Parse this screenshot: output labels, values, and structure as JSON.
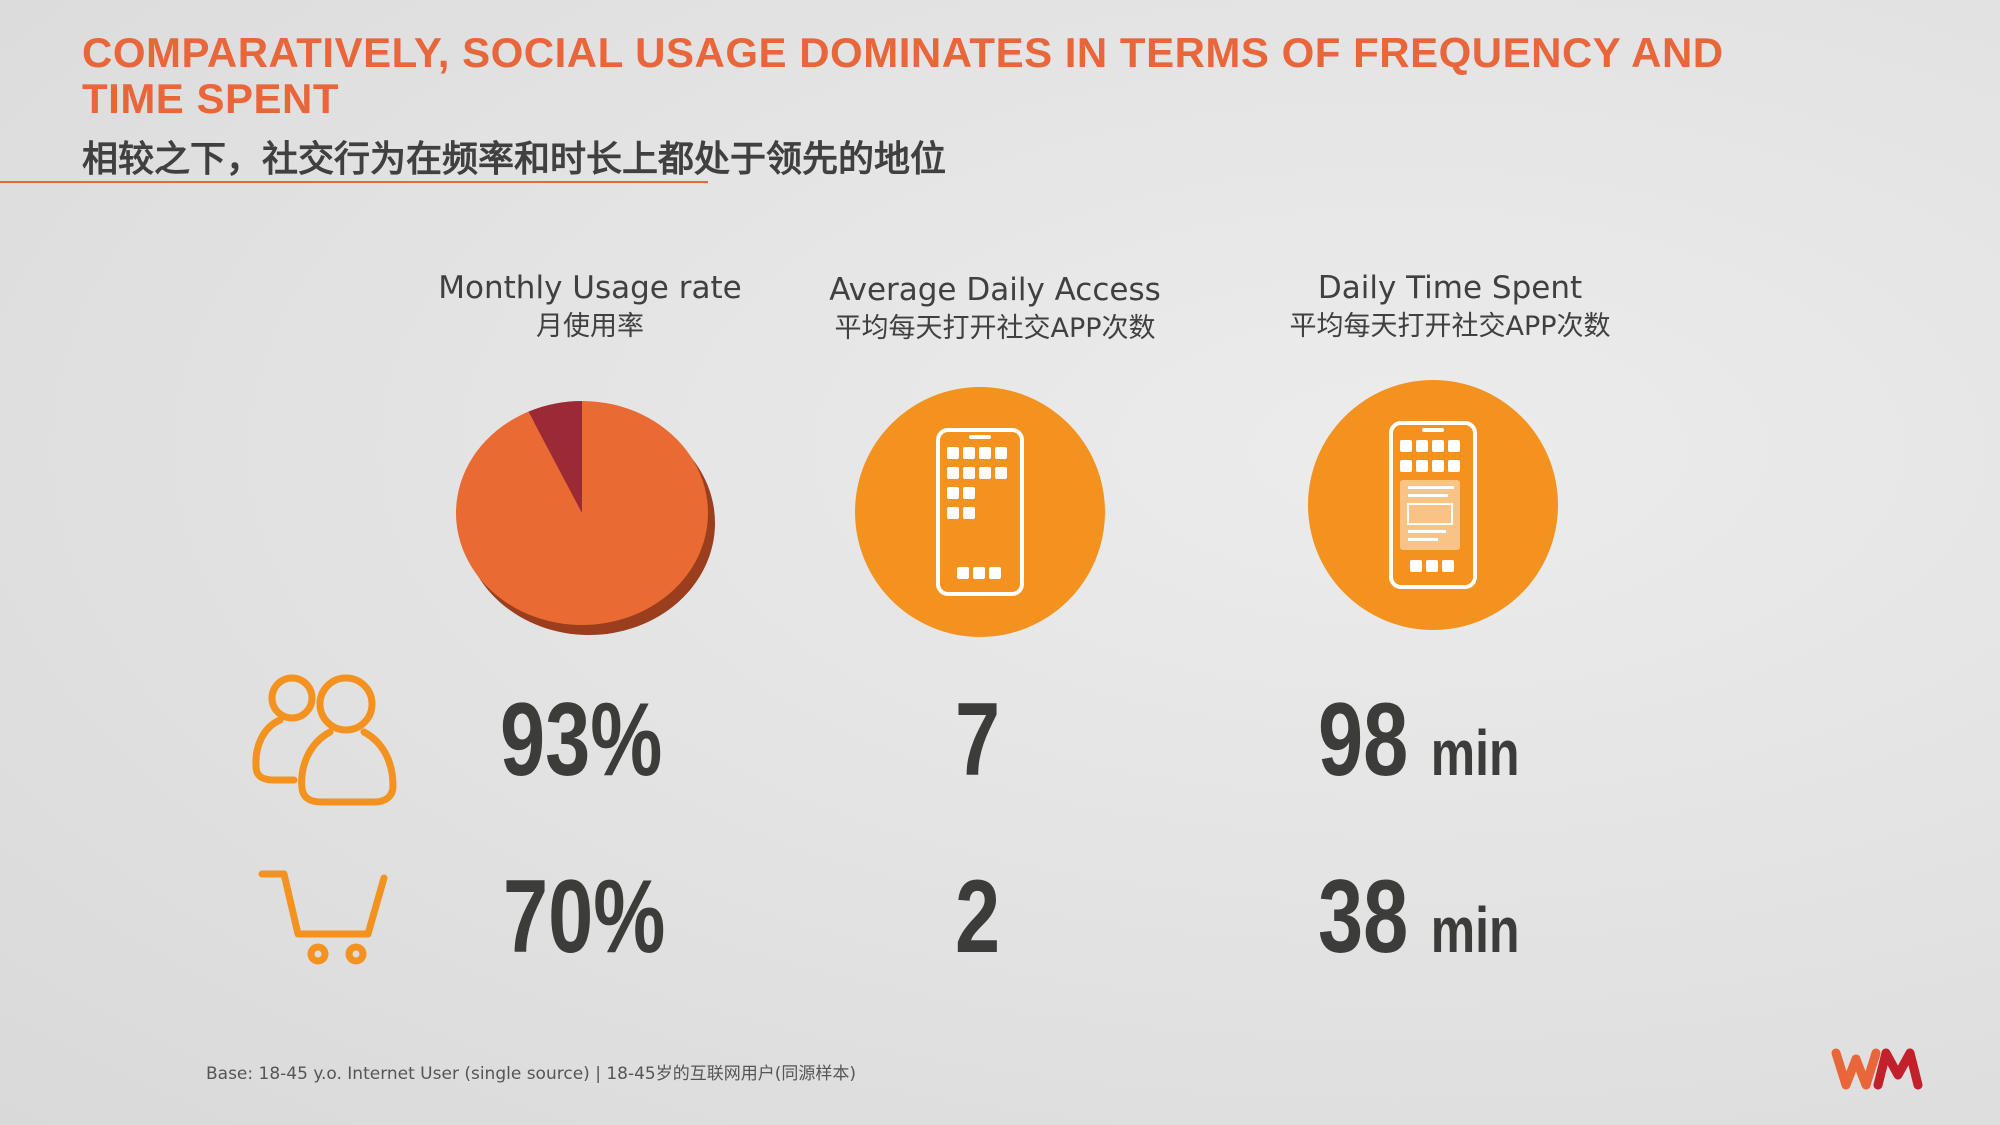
{
  "header": {
    "title": "COMPARATIVELY, SOCIAL USAGE DOMINATES IN TERMS OF FREQUENCY AND TIME SPENT",
    "subtitle": "相较之下，社交行为在频率和时长上都处于领先的地位"
  },
  "columns": [
    {
      "title_en": "Monthly Usage rate",
      "title_cn": "月使用率",
      "icon": "pie-chart-icon"
    },
    {
      "title_en": "Average Daily Access",
      "title_cn": "平均每天打开社交APP次数",
      "icon": "phone-apps-icon"
    },
    {
      "title_en": "Daily Time Spent",
      "title_cn": "平均每天打开社交APP次数",
      "icon": "phone-content-icon"
    }
  ],
  "rows": [
    {
      "icon": "users-icon",
      "usage_rate": "93%",
      "daily_access": "7",
      "time_value": "98",
      "time_unit": "min"
    },
    {
      "icon": "shopping-cart-icon",
      "usage_rate": "70%",
      "daily_access": "2",
      "time_value": "38",
      "time_unit": "min"
    }
  ],
  "chart_data": {
    "type": "pie",
    "categories": [
      "",
      ""
    ],
    "values": [
      93,
      7
    ],
    "colors": [
      "#e96a33",
      "#9b2a35"
    ]
  },
  "footer": {
    "base_note": "Base: 18-45 y.o. Internet User (single source) | 18-45岁的互联网用户(同源样本)"
  },
  "colors": {
    "accent": "#e8663a",
    "orange": "#f3921f",
    "text_dark": "#3c3c3b"
  }
}
